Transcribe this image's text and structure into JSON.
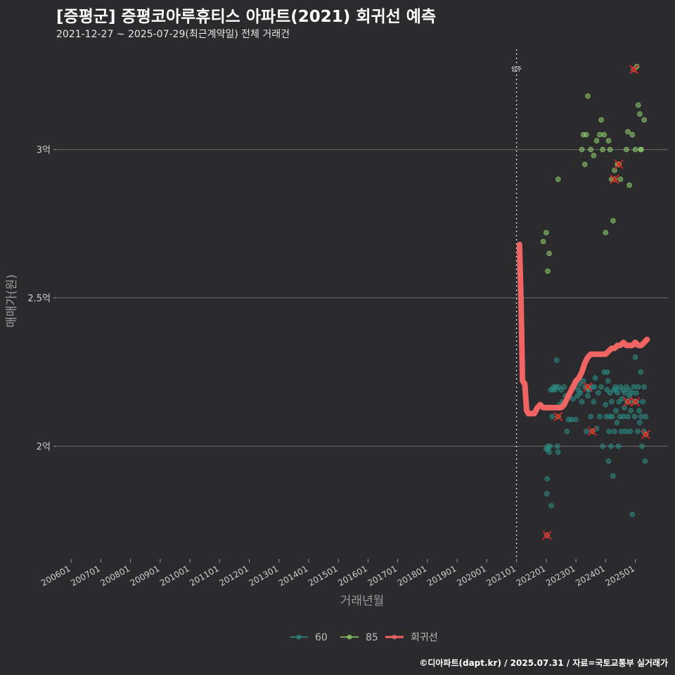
{
  "chart_data": {
    "type": "scatter",
    "title": "[증평군] 증평코아루휴티스 아파트(2021) 회귀선 예측",
    "subtitle": "2021-12-27 ~ 2025-07-29(최근계약일) 전체 거래건",
    "caption": "©디아파트(dapt.kr) / 2025.07.31 / 자료=국토교통부 실거래가",
    "xlabel": "거래년월",
    "ylabel": "매매가(원)",
    "x_range": [
      2005.5,
      2026.1
    ],
    "ylim": [
      1.62,
      3.35
    ],
    "y_ticks": [
      {
        "value": 2.0,
        "label": "2억"
      },
      {
        "value": 2.5,
        "label": "2.5억"
      },
      {
        "value": 3.0,
        "label": "3억"
      }
    ],
    "x_ticks": [
      {
        "value": 2006,
        "label": "200601"
      },
      {
        "value": 2007,
        "label": "200701"
      },
      {
        "value": 2008,
        "label": "200801"
      },
      {
        "value": 2009,
        "label": "200901"
      },
      {
        "value": 2010,
        "label": "201001"
      },
      {
        "value": 2011,
        "label": "201101"
      },
      {
        "value": 2012,
        "label": "201201"
      },
      {
        "value": 2013,
        "label": "201301"
      },
      {
        "value": 2014,
        "label": "201401"
      },
      {
        "value": 2015,
        "label": "201501"
      },
      {
        "value": 2016,
        "label": "201601"
      },
      {
        "value": 2017,
        "label": "201701"
      },
      {
        "value": 2018,
        "label": "201801"
      },
      {
        "value": 2019,
        "label": "201901"
      },
      {
        "value": 2020,
        "label": "202001"
      },
      {
        "value": 2021,
        "label": "202101"
      },
      {
        "value": 2022,
        "label": "202201"
      },
      {
        "value": 2023,
        "label": "202301"
      },
      {
        "value": 2024,
        "label": "202401"
      },
      {
        "value": 2025,
        "label": "202501"
      }
    ],
    "vline": {
      "x": 2021.0,
      "label": "입주"
    },
    "legend": [
      {
        "name": "60",
        "color": "#2a8c87"
      },
      {
        "name": "85",
        "color": "#8fd06e"
      },
      {
        "name": "회귀선",
        "color": "#f06464"
      }
    ],
    "series": [
      {
        "name": "60",
        "color": "#2a8c87",
        "points": [
          [
            2022.0,
            1.99
          ],
          [
            2022.02,
            1.84
          ],
          [
            2022.03,
            1.89
          ],
          [
            2022.06,
            1.99
          ],
          [
            2022.1,
            1.98
          ],
          [
            2022.13,
            2.0
          ],
          [
            2022.17,
            1.8
          ],
          [
            2022.2,
            2.1
          ],
          [
            2022.22,
            2.19
          ],
          [
            2022.25,
            2.2
          ],
          [
            2022.3,
            2.19
          ],
          [
            2022.33,
            2.2
          ],
          [
            2022.35,
            2.29
          ],
          [
            2022.38,
            2.0
          ],
          [
            2022.4,
            1.98
          ],
          [
            2022.45,
            2.14
          ],
          [
            2022.5,
            2.19
          ],
          [
            2022.55,
            2.15
          ],
          [
            2022.6,
            2.2
          ],
          [
            2022.65,
            2.17
          ],
          [
            2022.7,
            2.05
          ],
          [
            2022.75,
            2.09
          ],
          [
            2022.8,
            2.18
          ],
          [
            2022.85,
            2.09
          ],
          [
            2022.9,
            2.16
          ],
          [
            2022.95,
            2.2
          ],
          [
            2023.0,
            2.09
          ],
          [
            2023.05,
            2.17
          ],
          [
            2023.08,
            2.19
          ],
          [
            2023.12,
            2.21
          ],
          [
            2023.15,
            2.18
          ],
          [
            2023.2,
            2.15
          ],
          [
            2023.25,
            2.22
          ],
          [
            2023.3,
            2.2
          ],
          [
            2023.35,
            2.05
          ],
          [
            2023.4,
            2.17
          ],
          [
            2023.45,
            2.19
          ],
          [
            2023.5,
            2.1
          ],
          [
            2023.55,
            2.2
          ],
          [
            2023.6,
            2.15
          ],
          [
            2023.65,
            2.23
          ],
          [
            2023.7,
            2.06
          ],
          [
            2023.75,
            2.18
          ],
          [
            2023.8,
            2.1
          ],
          [
            2023.85,
            2.2
          ],
          [
            2023.9,
            2.0
          ],
          [
            2023.95,
            2.25
          ],
          [
            2024.0,
            2.14
          ],
          [
            2024.02,
            2.1
          ],
          [
            2024.05,
            2.19
          ],
          [
            2024.08,
            2.22
          ],
          [
            2024.1,
            1.95
          ],
          [
            2024.12,
            2.05
          ],
          [
            2024.15,
            2.18
          ],
          [
            2024.18,
            2.0
          ],
          [
            2024.2,
            2.15
          ],
          [
            2024.22,
            2.1
          ],
          [
            2024.25,
            1.9
          ],
          [
            2024.28,
            2.19
          ],
          [
            2024.3,
            2.05
          ],
          [
            2024.33,
            2.2
          ],
          [
            2024.35,
            2.12
          ],
          [
            2024.38,
            2.08
          ],
          [
            2024.4,
            2.18
          ],
          [
            2024.43,
            2.0
          ],
          [
            2024.45,
            2.15
          ],
          [
            2024.48,
            2.1
          ],
          [
            2024.5,
            2.2
          ],
          [
            2024.53,
            2.05
          ],
          [
            2024.55,
            2.16
          ],
          [
            2024.58,
            2.19
          ],
          [
            2024.6,
            2.1
          ],
          [
            2024.63,
            2.13
          ],
          [
            2024.65,
            2.18
          ],
          [
            2024.68,
            2.05
          ],
          [
            2024.7,
            2.2
          ],
          [
            2024.73,
            2.15
          ],
          [
            2024.75,
            2.1
          ],
          [
            2024.78,
            2.19
          ],
          [
            2024.8,
            2.17
          ],
          [
            2024.83,
            2.05
          ],
          [
            2024.85,
            2.12
          ],
          [
            2024.88,
            2.18
          ],
          [
            2024.9,
            1.77
          ],
          [
            2024.93,
            2.15
          ],
          [
            2024.95,
            2.2
          ],
          [
            2024.98,
            2.1
          ],
          [
            2025.0,
            2.3
          ],
          [
            2025.03,
            2.18
          ],
          [
            2025.05,
            2.15
          ],
          [
            2025.08,
            2.05
          ],
          [
            2025.1,
            2.2
          ],
          [
            2025.13,
            2.12
          ],
          [
            2025.15,
            2.08
          ],
          [
            2025.18,
            2.25
          ],
          [
            2025.2,
            2.1
          ],
          [
            2025.23,
            2.0
          ],
          [
            2025.25,
            2.15
          ],
          [
            2025.28,
            2.05
          ],
          [
            2025.3,
            2.2
          ],
          [
            2025.33,
            1.95
          ],
          [
            2025.35,
            2.1
          ],
          [
            2022.05,
            2.0
          ],
          [
            2022.15,
            2.19
          ],
          [
            2022.42,
            2.2
          ],
          [
            2023.42,
            2.19
          ],
          [
            2023.62,
            2.2
          ],
          [
            2024.06,
            2.25
          ],
          [
            2024.14,
            2.1
          ],
          [
            2024.36,
            2.19
          ]
        ]
      },
      {
        "name": "85",
        "color": "#8fd06e",
        "points": [
          [
            2021.9,
            2.69
          ],
          [
            2022.0,
            2.72
          ],
          [
            2022.05,
            2.59
          ],
          [
            2022.1,
            2.65
          ],
          [
            2022.4,
            2.9
          ],
          [
            2023.2,
            3.0
          ],
          [
            2023.25,
            3.05
          ],
          [
            2023.3,
            2.95
          ],
          [
            2023.35,
            3.05
          ],
          [
            2023.4,
            3.18
          ],
          [
            2023.5,
            3.0
          ],
          [
            2023.6,
            2.98
          ],
          [
            2023.7,
            3.03
          ],
          [
            2023.8,
            3.05
          ],
          [
            2023.85,
            3.1
          ],
          [
            2023.9,
            3.0
          ],
          [
            2023.95,
            3.05
          ],
          [
            2024.0,
            2.72
          ],
          [
            2024.1,
            3.03
          ],
          [
            2024.15,
            3.0
          ],
          [
            2024.2,
            2.9
          ],
          [
            2024.25,
            2.76
          ],
          [
            2024.3,
            2.93
          ],
          [
            2024.4,
            2.95
          ],
          [
            2024.5,
            2.9
          ],
          [
            2024.7,
            3.0
          ],
          [
            2024.75,
            3.06
          ],
          [
            2024.8,
            2.88
          ],
          [
            2024.9,
            3.05
          ],
          [
            2025.0,
            3.0
          ],
          [
            2025.05,
            3.28
          ],
          [
            2025.1,
            3.15
          ],
          [
            2025.15,
            3.12
          ],
          [
            2025.2,
            3.0
          ],
          [
            2025.3,
            3.1
          ],
          [
            2025.18,
            3.0
          ]
        ]
      }
    ],
    "outliers": [
      [
        2022.03,
        1.7
      ],
      [
        2022.4,
        2.1
      ],
      [
        2023.4,
        2.2
      ],
      [
        2023.55,
        2.05
      ],
      [
        2024.3,
        2.9
      ],
      [
        2024.45,
        2.95
      ],
      [
        2024.75,
        2.15
      ],
      [
        2025.0,
        2.15
      ],
      [
        2024.95,
        3.27
      ],
      [
        2025.35,
        2.04
      ]
    ],
    "regression": {
      "name": "회귀선",
      "color": "#f06464",
      "points": [
        [
          2021.1,
          2.68
        ],
        [
          2021.15,
          2.5
        ],
        [
          2021.2,
          2.22
        ],
        [
          2021.28,
          2.21
        ],
        [
          2021.34,
          2.12
        ],
        [
          2021.4,
          2.11
        ],
        [
          2021.5,
          2.11
        ],
        [
          2021.6,
          2.11
        ],
        [
          2021.7,
          2.13
        ],
        [
          2021.8,
          2.14
        ],
        [
          2021.9,
          2.13
        ],
        [
          2022.0,
          2.13
        ],
        [
          2022.1,
          2.13
        ],
        [
          2022.2,
          2.13
        ],
        [
          2022.3,
          2.13
        ],
        [
          2022.4,
          2.13
        ],
        [
          2022.5,
          2.13
        ],
        [
          2022.6,
          2.14
        ],
        [
          2022.7,
          2.16
        ],
        [
          2022.8,
          2.18
        ],
        [
          2022.9,
          2.2
        ],
        [
          2023.0,
          2.22
        ],
        [
          2023.1,
          2.23
        ],
        [
          2023.2,
          2.25
        ],
        [
          2023.3,
          2.28
        ],
        [
          2023.4,
          2.3
        ],
        [
          2023.5,
          2.31
        ],
        [
          2023.6,
          2.31
        ],
        [
          2023.7,
          2.31
        ],
        [
          2023.8,
          2.31
        ],
        [
          2023.9,
          2.31
        ],
        [
          2024.0,
          2.31
        ],
        [
          2024.1,
          2.32
        ],
        [
          2024.2,
          2.33
        ],
        [
          2024.3,
          2.33
        ],
        [
          2024.4,
          2.34
        ],
        [
          2024.5,
          2.34
        ],
        [
          2024.6,
          2.35
        ],
        [
          2024.7,
          2.34
        ],
        [
          2024.8,
          2.34
        ],
        [
          2024.9,
          2.34
        ],
        [
          2025.0,
          2.35
        ],
        [
          2025.1,
          2.34
        ],
        [
          2025.2,
          2.34
        ],
        [
          2025.3,
          2.35
        ],
        [
          2025.4,
          2.36
        ]
      ]
    }
  }
}
